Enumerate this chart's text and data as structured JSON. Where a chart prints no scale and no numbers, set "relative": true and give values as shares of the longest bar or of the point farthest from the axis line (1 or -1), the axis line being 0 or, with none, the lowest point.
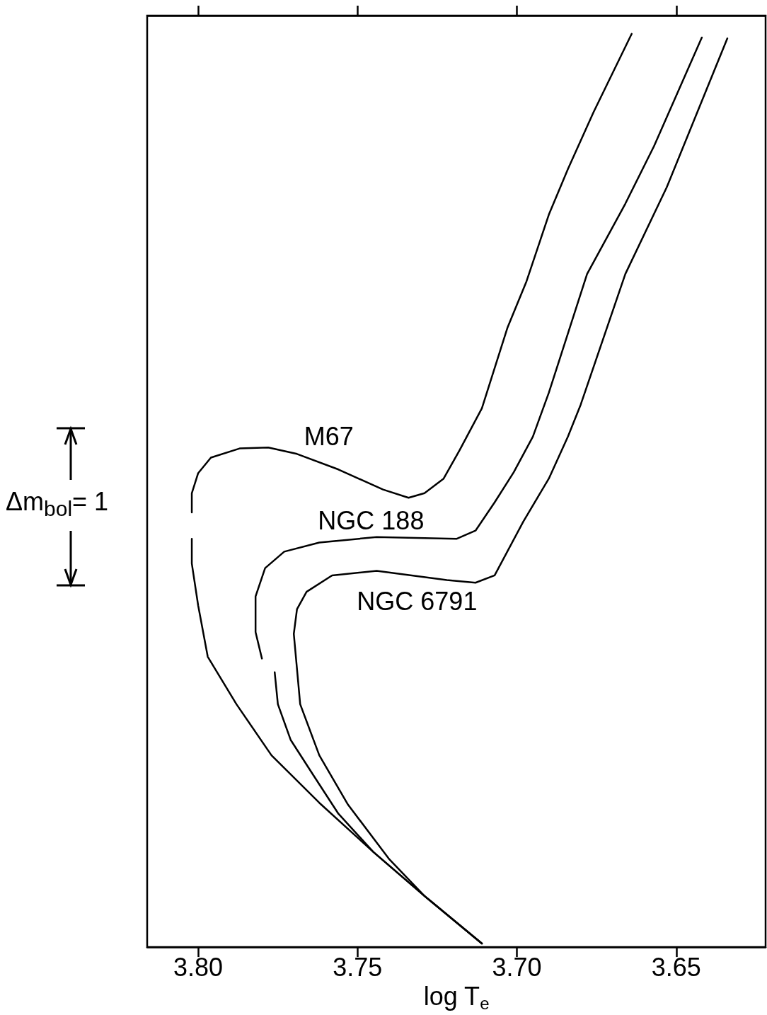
{
  "chart_data": {
    "type": "line",
    "xlabel": "log T$_{e}$",
    "relative": true,
    "xlim": [
      3.816,
      3.622
    ],
    "xticks": [
      {
        "value": 3.8,
        "label": "3.80"
      },
      3.75,
      {
        "value": 3.7,
        "label": "3.70"
      },
      3.65
    ],
    "annotations": [
      "Δm$_{bol}$= 1"
    ],
    "legend": false,
    "grid": false,
    "marker": "none",
    "line_style": "solid",
    "series": [
      {
        "name": "M67",
        "color": "#000000",
        "x": [
          3.711,
          3.729,
          3.745,
          3.762,
          3.777,
          3.788,
          3.797,
          3.8,
          3.802,
          3.802,
          null,
          3.802,
          3.802,
          3.8,
          3.796,
          3.787,
          3.778,
          3.769,
          3.756,
          3.742,
          3.734,
          3.729,
          3.723,
          3.718,
          3.711,
          3.703,
          3.697,
          3.69,
          3.684,
          3.676,
          3.664
        ],
        "values": [
          0.004,
          0.056,
          0.104,
          0.158,
          0.21,
          0.266,
          0.318,
          0.374,
          0.42,
          0.447,
          null,
          0.476,
          0.497,
          0.519,
          0.536,
          0.546,
          0.547,
          0.54,
          0.523,
          0.501,
          0.492,
          0.497,
          0.513,
          0.544,
          0.59,
          0.678,
          0.729,
          0.802,
          0.852,
          0.914,
          1.0
        ]
      },
      {
        "name": "NGC 188",
        "color": "#000000",
        "x": [
          3.711,
          3.729,
          3.745,
          3.756,
          3.764,
          3.771,
          3.775,
          3.776,
          null,
          3.78,
          3.782,
          3.782,
          3.779,
          3.773,
          3.762,
          3.744,
          3.719,
          3.713,
          3.707,
          3.701,
          3.695,
          3.69,
          3.678,
          3.666,
          3.657,
          3.642
        ],
        "values": [
          0.004,
          0.056,
          0.104,
          0.146,
          0.189,
          0.227,
          0.266,
          0.301,
          null,
          0.316,
          0.345,
          0.384,
          0.415,
          0.433,
          0.443,
          0.449,
          0.447,
          0.456,
          0.487,
          0.52,
          0.559,
          0.607,
          0.737,
          0.814,
          0.877,
          0.996
        ]
      },
      {
        "name": "NGC 6791",
        "color": "#000000",
        "x": [
          3.711,
          3.729,
          3.74,
          3.753,
          3.762,
          3.768,
          3.77,
          3.769,
          3.766,
          3.758,
          3.744,
          3.722,
          3.713,
          3.707,
          3.698,
          3.69,
          3.684,
          3.68,
          3.666,
          3.653,
          3.634
        ],
        "values": [
          0.004,
          0.056,
          0.096,
          0.156,
          0.21,
          0.266,
          0.343,
          0.37,
          0.389,
          0.407,
          0.412,
          0.402,
          0.399,
          0.407,
          0.466,
          0.513,
          0.559,
          0.594,
          0.737,
          0.832,
          0.995
        ]
      }
    ]
  }
}
